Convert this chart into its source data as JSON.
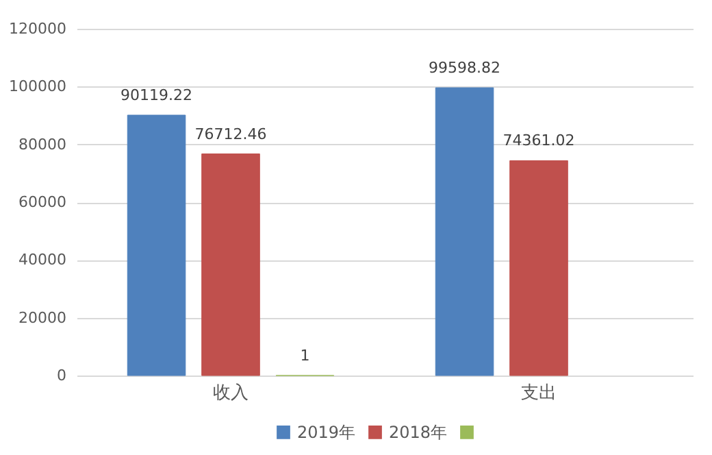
{
  "chart_data": {
    "type": "bar",
    "categories": [
      "收入",
      "支出"
    ],
    "series": [
      {
        "name": "2019年",
        "color": "#4f81bd",
        "values": [
          90119.22,
          99598.82
        ]
      },
      {
        "name": "2018年",
        "color": "#c0504d",
        "values": [
          76712.46,
          74361.02
        ]
      },
      {
        "color": "#9bbb59",
        "values": [
          1,
          null
        ]
      }
    ],
    "ylim": [
      0,
      120000
    ],
    "yticks": [
      0,
      20000,
      40000,
      60000,
      80000,
      100000,
      120000
    ],
    "grid": "y",
    "legend": "bottom",
    "data_labels": true
  }
}
